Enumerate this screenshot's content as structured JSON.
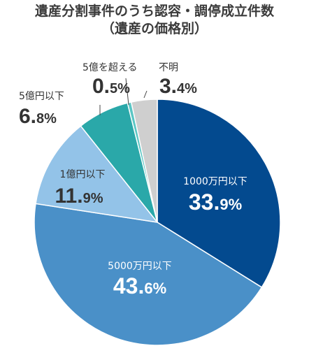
{
  "chart_data": {
    "type": "pie",
    "title": "遺産分割事件のうち認容・調停成立件数（遺産の価格別）",
    "title_lines": [
      "遺産分割事件のうち認容・調停成立件数",
      "（遺産の価格別）"
    ],
    "unit": "%",
    "start_angle_deg": 0,
    "direction": "clockwise",
    "slices": [
      {
        "label": "1000万円以下",
        "value": 33.9,
        "value_main": "33.",
        "value_frac": "9",
        "color": "#034a8f",
        "label_color": "#ffffff"
      },
      {
        "label": "5000万円以下",
        "value": 43.6,
        "value_main": "43.",
        "value_frac": "6",
        "color": "#4a90c8",
        "label_color": "#ffffff"
      },
      {
        "label": "1億円以下",
        "value": 11.9,
        "value_main": "11.",
        "value_frac": "9",
        "color": "#93c3e8",
        "label_color": "#333333"
      },
      {
        "label": "5億円以下",
        "value": 6.8,
        "value_main": "6.",
        "value_frac": "8",
        "color": "#2aa8a9",
        "label_color": "#333333"
      },
      {
        "label": "5億を超える",
        "value": 0.5,
        "value_main": "0.",
        "value_frac": "5",
        "color": "#5cc6c4",
        "label_color": "#333333"
      },
      {
        "label": "不明",
        "value": 3.4,
        "value_main": "3.",
        "value_frac": "4",
        "color": "#cfcfcf",
        "label_color": "#333333"
      }
    ]
  }
}
